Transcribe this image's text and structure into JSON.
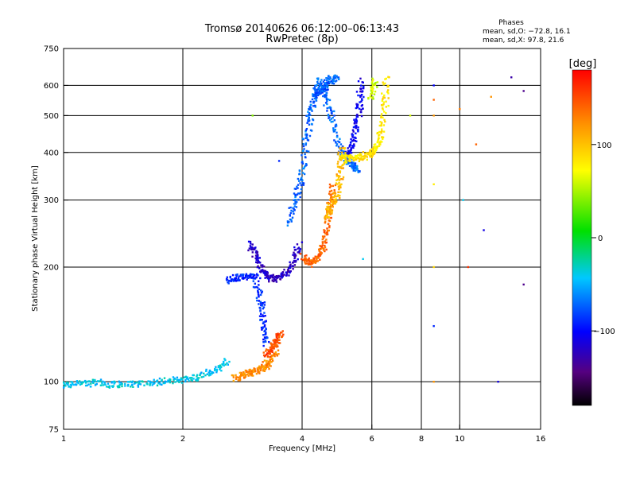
{
  "title_line1": "Tromsø 20140626 06:12:00–06:13:43",
  "title_line2": "RwPretec (8p)",
  "stats": {
    "heading": "Phases",
    "line_o": "mean, sd,O: −72.8, 16.1",
    "line_x": "mean, sd,X: 97.8, 21.6"
  },
  "colorbar": {
    "unit_label": "[deg]",
    "ticks": [
      {
        "label": "100",
        "value": 100
      },
      {
        "label": "0",
        "value": 0
      },
      {
        "label": "−100",
        "value": -100
      }
    ],
    "range": [
      -180,
      180
    ]
  },
  "chart_data": {
    "type": "scatter",
    "title": "Tromsø 20140626 06:12:00–06:13:43 RwPretec (8p)",
    "xlabel": "Frequency [MHz]",
    "ylabel": "Stationary phase Virtual Height [km]",
    "xscale": "log",
    "yscale": "log",
    "xlim": [
      1,
      16
    ],
    "ylim": [
      75,
      750
    ],
    "grid": true,
    "x_ticks": [
      {
        "label": "1",
        "value": 1
      },
      {
        "label": "2",
        "value": 2
      },
      {
        "label": "4",
        "value": 4
      },
      {
        "label": "6",
        "value": 6
      },
      {
        "label": "8",
        "value": 8
      },
      {
        "label": "10",
        "value": 10
      },
      {
        "label": "16",
        "value": 16
      }
    ],
    "y_ticks": [
      {
        "label": "75",
        "value": 75
      },
      {
        "label": "100",
        "value": 100
      },
      {
        "label": "200",
        "value": 200
      },
      {
        "label": "300",
        "value": 300
      },
      {
        "label": "400",
        "value": 400
      },
      {
        "label": "500",
        "value": 500
      },
      {
        "label": "600",
        "value": 600
      },
      {
        "label": "750",
        "value": 750
      }
    ],
    "color_variable": "phase [deg]",
    "traces": [
      {
        "x": [
          1.0,
          1.1,
          1.25,
          1.4,
          1.6,
          1.8,
          2.0,
          2.2,
          2.4,
          2.6
        ],
        "y": [
          98,
          99,
          99,
          98,
          99,
          100,
          101,
          103,
          107,
          113
        ],
        "phase": -40
      },
      {
        "x": [
          2.7,
          2.85,
          3.0,
          3.15,
          3.3,
          3.45
        ],
        "y": [
          102,
          104,
          106,
          108,
          112,
          120
        ],
        "phase": 125
      },
      {
        "x": [
          3.25,
          3.35,
          3.45,
          3.55
        ],
        "y": [
          118,
          122,
          128,
          135
        ],
        "phase": 150
      },
      {
        "x": [
          2.6,
          2.75,
          2.9,
          3.05,
          3.15,
          3.2,
          3.25
        ],
        "y": [
          185,
          187,
          189,
          190,
          160,
          140,
          125
        ],
        "phase": -90
      },
      {
        "x": [
          2.95,
          3.05,
          3.15,
          3.25,
          3.4,
          3.6,
          3.8,
          3.95
        ],
        "y": [
          230,
          215,
          200,
          190,
          186,
          190,
          205,
          230
        ],
        "phase": -120
      },
      {
        "x": [
          3.7,
          3.85,
          4.0,
          4.1,
          4.2,
          4.3,
          4.45,
          4.6,
          4.8,
          5.0,
          5.2,
          5.4,
          5.5
        ],
        "y": [
          260,
          300,
          350,
          430,
          500,
          560,
          620,
          560,
          480,
          410,
          380,
          370,
          360
        ],
        "phase": -70
      },
      {
        "x": [
          4.3,
          4.45,
          4.6,
          4.75,
          4.9
        ],
        "y": [
          560,
          580,
          600,
          620,
          630
        ],
        "phase": -75
      },
      {
        "x": [
          5.2,
          5.35,
          5.5,
          5.6,
          5.65
        ],
        "y": [
          390,
          420,
          470,
          540,
          620
        ],
        "phase": -105
      },
      {
        "x": [
          4.05,
          4.2,
          4.35,
          4.5,
          4.6,
          4.7,
          4.8
        ],
        "y": [
          212,
          205,
          210,
          225,
          250,
          290,
          330
        ],
        "phase": 140
      },
      {
        "x": [
          4.6,
          4.75,
          4.9,
          5.0,
          5.1
        ],
        "y": [
          270,
          290,
          310,
          360,
          420
        ],
        "phase": 105
      },
      {
        "x": [
          5.0,
          5.3,
          5.6,
          5.9,
          6.1,
          6.3,
          6.45,
          6.55
        ],
        "y": [
          390,
          385,
          390,
          395,
          405,
          440,
          520,
          640
        ],
        "phase": 85
      },
      {
        "x": [
          6.0,
          6.1
        ],
        "y": [
          560,
          620
        ],
        "phase": 60
      }
    ],
    "scatter_points": [
      {
        "x": 8.6,
        "y": 600,
        "phase": -100
      },
      {
        "x": 8.6,
        "y": 550,
        "phase": 140
      },
      {
        "x": 8.6,
        "y": 500,
        "phase": 120
      },
      {
        "x": 8.6,
        "y": 330,
        "phase": 80
      },
      {
        "x": 8.6,
        "y": 200,
        "phase": 90
      },
      {
        "x": 8.6,
        "y": 140,
        "phase": -90
      },
      {
        "x": 8.6,
        "y": 100,
        "phase": 120
      },
      {
        "x": 10.0,
        "y": 520,
        "phase": 130
      },
      {
        "x": 10.2,
        "y": 300,
        "phase": -40
      },
      {
        "x": 10.5,
        "y": 200,
        "phase": 160
      },
      {
        "x": 11.0,
        "y": 420,
        "phase": 140
      },
      {
        "x": 11.5,
        "y": 250,
        "phase": -110
      },
      {
        "x": 12.0,
        "y": 560,
        "phase": 120
      },
      {
        "x": 12.5,
        "y": 100,
        "phase": -110
      },
      {
        "x": 13.5,
        "y": 630,
        "phase": -130
      },
      {
        "x": 14.5,
        "y": 580,
        "phase": -140
      },
      {
        "x": 14.5,
        "y": 180,
        "phase": -140
      },
      {
        "x": 3.0,
        "y": 500,
        "phase": 40
      },
      {
        "x": 3.5,
        "y": 380,
        "phase": -90
      },
      {
        "x": 7.5,
        "y": 500,
        "phase": 60
      },
      {
        "x": 5.7,
        "y": 210,
        "phase": -40
      }
    ]
  }
}
